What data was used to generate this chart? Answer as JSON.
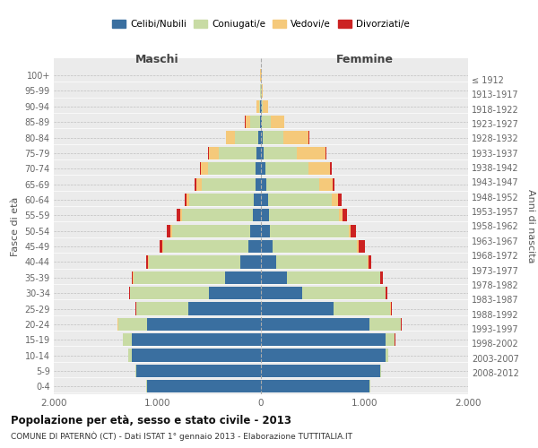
{
  "age_groups": [
    "0-4",
    "5-9",
    "10-14",
    "15-19",
    "20-24",
    "25-29",
    "30-34",
    "35-39",
    "40-44",
    "45-49",
    "50-54",
    "55-59",
    "60-64",
    "65-69",
    "70-74",
    "75-79",
    "80-84",
    "85-89",
    "90-94",
    "95-99",
    "100+"
  ],
  "birth_years": [
    "2008-2012",
    "2003-2007",
    "1998-2002",
    "1993-1997",
    "1988-1992",
    "1983-1987",
    "1978-1982",
    "1973-1977",
    "1968-1972",
    "1963-1967",
    "1958-1962",
    "1953-1957",
    "1948-1952",
    "1943-1947",
    "1938-1942",
    "1933-1937",
    "1928-1932",
    "1923-1927",
    "1918-1922",
    "1913-1917",
    "≤ 1912"
  ],
  "maschi": {
    "celibi": [
      1100,
      1200,
      1250,
      1250,
      1100,
      700,
      500,
      350,
      200,
      120,
      100,
      80,
      70,
      55,
      50,
      40,
      25,
      10,
      5,
      2,
      2
    ],
    "coniugati": [
      5,
      10,
      30,
      80,
      280,
      500,
      760,
      880,
      880,
      820,
      760,
      680,
      620,
      520,
      460,
      370,
      230,
      90,
      15,
      3,
      2
    ],
    "vedovi": [
      0,
      0,
      1,
      2,
      3,
      5,
      5,
      5,
      8,
      10,
      15,
      20,
      30,
      50,
      70,
      90,
      80,
      50,
      20,
      5,
      2
    ],
    "divorziati": [
      0,
      0,
      1,
      3,
      5,
      8,
      10,
      15,
      20,
      25,
      30,
      30,
      20,
      15,
      10,
      8,
      5,
      3,
      2,
      0,
      0
    ]
  },
  "femmine": {
    "nubili": [
      1050,
      1150,
      1200,
      1200,
      1050,
      700,
      400,
      250,
      150,
      110,
      90,
      75,
      65,
      50,
      40,
      30,
      20,
      12,
      5,
      2,
      2
    ],
    "coniugate": [
      5,
      10,
      30,
      90,
      300,
      550,
      800,
      900,
      880,
      820,
      760,
      680,
      620,
      510,
      420,
      320,
      200,
      80,
      15,
      3,
      2
    ],
    "vedove": [
      0,
      0,
      1,
      2,
      3,
      4,
      5,
      5,
      8,
      12,
      20,
      35,
      60,
      130,
      210,
      270,
      240,
      130,
      50,
      15,
      4
    ],
    "divorziate": [
      0,
      0,
      1,
      3,
      5,
      8,
      15,
      20,
      30,
      60,
      50,
      40,
      35,
      20,
      10,
      8,
      5,
      3,
      2,
      0,
      0
    ]
  },
  "colors": {
    "celibi": "#3a6fa0",
    "coniugati": "#c8dba4",
    "vedovi": "#f5c97a",
    "divorziati": "#cc2222"
  },
  "title": "Popolazione per età, sesso e stato civile - 2013",
  "subtitle": "COMUNE DI PATERNÒ (CT) - Dati ISTAT 1° gennaio 2013 - Elaborazione TUTTITALIA.IT",
  "xlabel_left": "Maschi",
  "xlabel_right": "Femmine",
  "ylabel_left": "Fasce di età",
  "ylabel_right": "Anni di nascita",
  "xlim": 2000,
  "legend_labels": [
    "Celibi/Nubili",
    "Coniugati/e",
    "Vedovi/e",
    "Divorziati/e"
  ],
  "background_color": "#ffffff",
  "plot_bg_color": "#ebebeb"
}
